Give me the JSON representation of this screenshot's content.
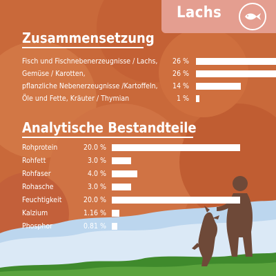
{
  "header": {
    "tag_label": "Lachs",
    "badge_icon": "fish-icon"
  },
  "composition": {
    "title": "Zusammensetzung",
    "rows": [
      {
        "label": "Fisch und Fischnebenerzeugnisse / Lachs,",
        "percent_label": "26 %",
        "value": 26
      },
      {
        "label": "Gemüse / Karotten,",
        "percent_label": "26 %",
        "value": 26
      },
      {
        "label": "pflanzliche Nebenerzeugnisse /Kartoffeln,",
        "percent_label": "14 %",
        "value": 14
      },
      {
        "label": "Öle und Fette, Kräuter / Thymian",
        "percent_label": "1 %",
        "value": 1
      }
    ]
  },
  "analysis": {
    "title": "Analytische Bestandteile",
    "rows": [
      {
        "label": "Rohprotein",
        "percent_label": "20.0 %",
        "value": 20.0
      },
      {
        "label": "Rohfett",
        "percent_label": "3.0 %",
        "value": 3.0
      },
      {
        "label": "Rohfaser",
        "percent_label": "4.0 %",
        "value": 4.0
      },
      {
        "label": "Rohasche",
        "percent_label": "3.0 %",
        "value": 3.0
      },
      {
        "label": "Feuchtigkeit",
        "percent_label": "20.0 %",
        "value": 20.0
      },
      {
        "label": "Kalzium",
        "percent_label": "1.16 %",
        "value": 1.16
      },
      {
        "label": "Phosphor",
        "percent_label": "0.81 %",
        "value": 0.81
      }
    ]
  },
  "colors": {
    "background": "#c9693a",
    "tag": "#e49e90",
    "text": "#ffffff",
    "silhouette": "#6e4938",
    "sky": "#bcd6ee",
    "grass": "#3f8a2c"
  }
}
